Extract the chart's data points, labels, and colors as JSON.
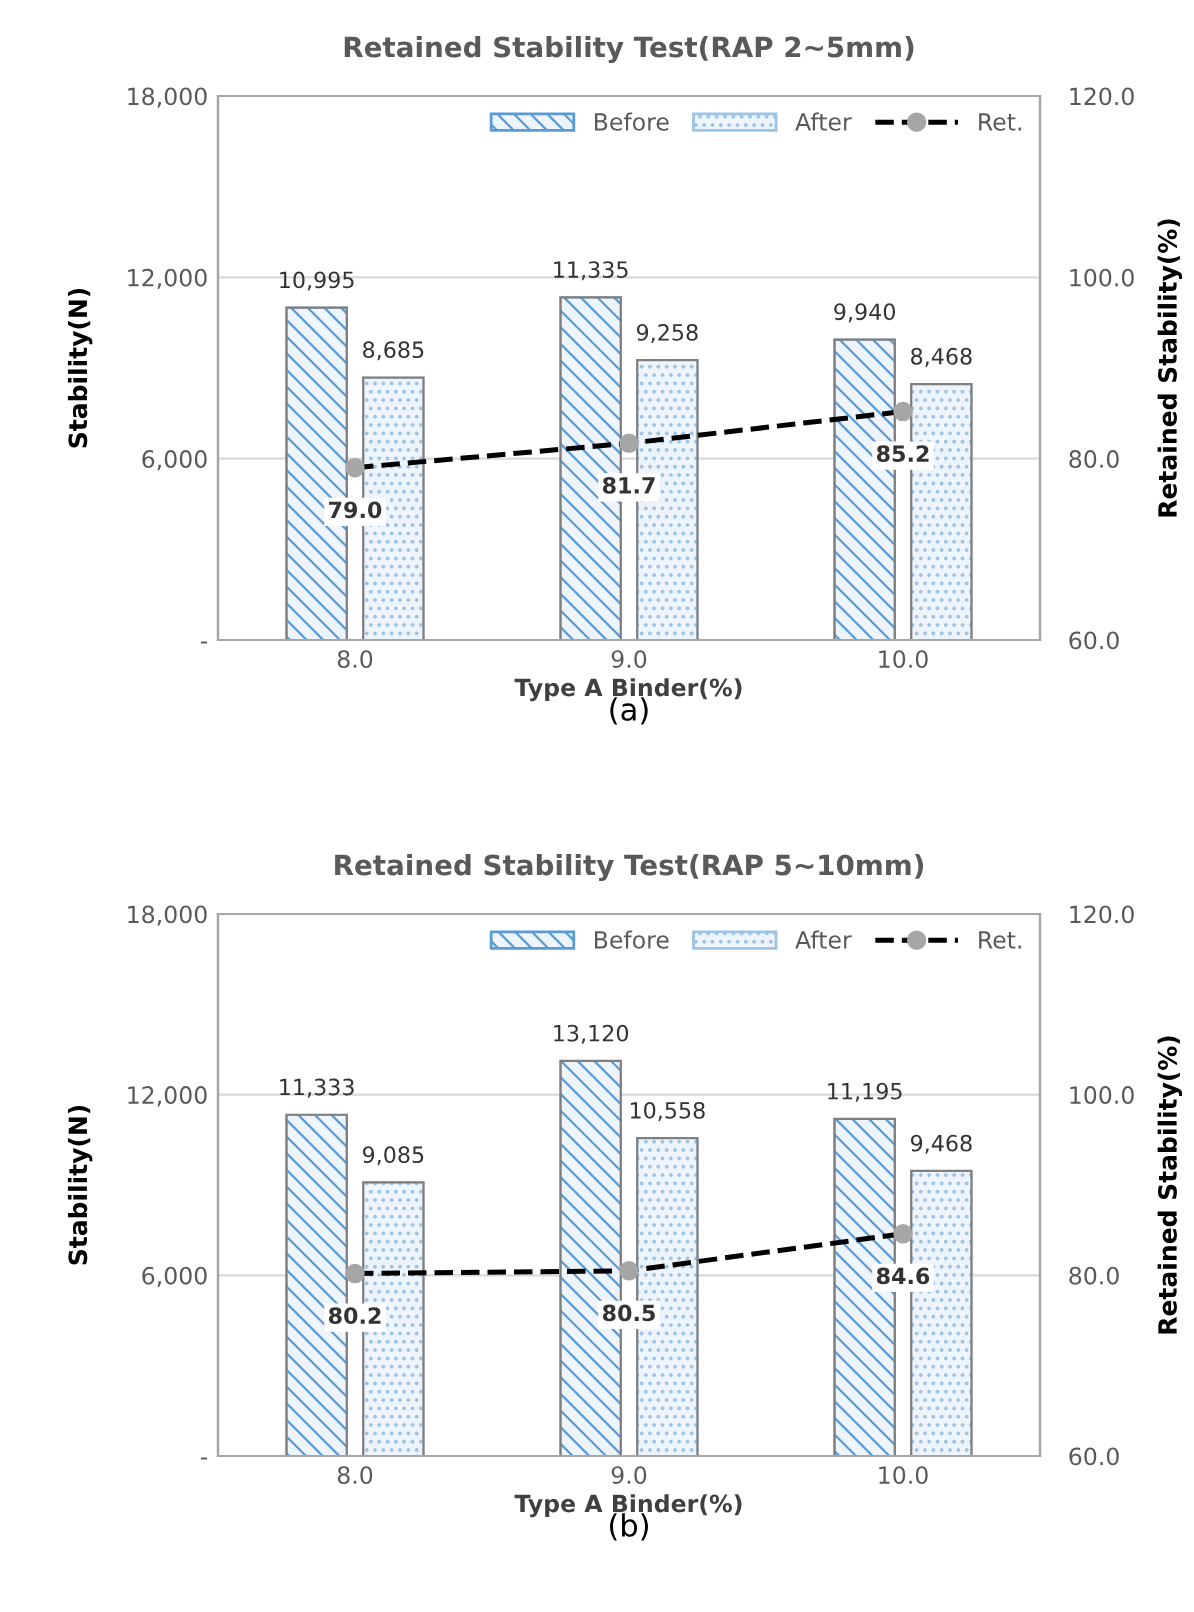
{
  "chart_data": [
    {
      "type": "bar",
      "title": "Retained Stability Test(RAP 2~5mm)",
      "xlabel": "Type A Binder(%)",
      "ylabel": "Stability(N)",
      "y2label": "Retained Stability(%)",
      "categories": [
        "8.0",
        "9.0",
        "10.0"
      ],
      "series": [
        {
          "name": "Before",
          "color": "#5b9bd5",
          "values": [
            10995,
            11335,
            9940
          ],
          "value_labels": [
            "10,995",
            "11,335",
            "9,940"
          ]
        },
        {
          "name": "After",
          "color": "#9dc3e6",
          "values": [
            8685,
            9258,
            8468
          ],
          "value_labels": [
            "8,685",
            "9,258",
            "8,468"
          ]
        },
        {
          "name": "Ret.",
          "type": "line",
          "axis": "y2",
          "color": "#000000",
          "marker": "circle",
          "line_style": "dashed",
          "values": [
            79.0,
            81.7,
            85.2
          ],
          "value_labels": [
            "79.0",
            "81.7",
            "85.2"
          ]
        }
      ],
      "ylim": [
        0,
        18000
      ],
      "yticks": [
        {
          "value": 0,
          "label": "-"
        },
        {
          "value": 6000,
          "label": "6,000"
        },
        {
          "value": 12000,
          "label": "12,000"
        },
        {
          "value": 18000,
          "label": "18,000"
        }
      ],
      "y2lim": [
        60,
        120
      ],
      "y2ticks": [
        {
          "value": 60,
          "label": "60.0"
        },
        {
          "value": 80,
          "label": "80.0"
        },
        {
          "value": 100,
          "label": "100.0"
        },
        {
          "value": 120,
          "label": "120.0"
        }
      ],
      "grid": "y",
      "legend": "top right",
      "annotations": [
        "(a)"
      ]
    },
    {
      "type": "bar",
      "title": "Retained Stability Test(RAP 5~10mm)",
      "xlabel": "Type A Binder(%)",
      "ylabel": "Stability(N)",
      "y2label": "Retained Stability(%)",
      "categories": [
        "8.0",
        "9.0",
        "10.0"
      ],
      "series": [
        {
          "name": "Before",
          "color": "#5b9bd5",
          "values": [
            11333,
            13120,
            11195
          ],
          "value_labels": [
            "11,333",
            "13,120",
            "11,195"
          ]
        },
        {
          "name": "After",
          "color": "#9dc3e6",
          "values": [
            9085,
            10558,
            9468
          ],
          "value_labels": [
            "9,085",
            "10,558",
            "9,468"
          ]
        },
        {
          "name": "Ret.",
          "type": "line",
          "axis": "y2",
          "color": "#000000",
          "marker": "circle",
          "line_style": "dashed",
          "values": [
            80.2,
            80.5,
            84.6
          ],
          "value_labels": [
            "80.2",
            "80.5",
            "84.6"
          ]
        }
      ],
      "ylim": [
        0,
        18000
      ],
      "yticks": [
        {
          "value": 0,
          "label": "-"
        },
        {
          "value": 6000,
          "label": "6,000"
        },
        {
          "value": 12000,
          "label": "12,000"
        },
        {
          "value": 18000,
          "label": "18,000"
        }
      ],
      "y2lim": [
        60,
        120
      ],
      "y2ticks": [
        {
          "value": 60,
          "label": "60.0"
        },
        {
          "value": 80,
          "label": "80.0"
        },
        {
          "value": 100,
          "label": "100.0"
        },
        {
          "value": 120,
          "label": "120.0"
        }
      ],
      "grid": "y",
      "legend": "top right",
      "annotations": [
        "(b)"
      ]
    }
  ]
}
